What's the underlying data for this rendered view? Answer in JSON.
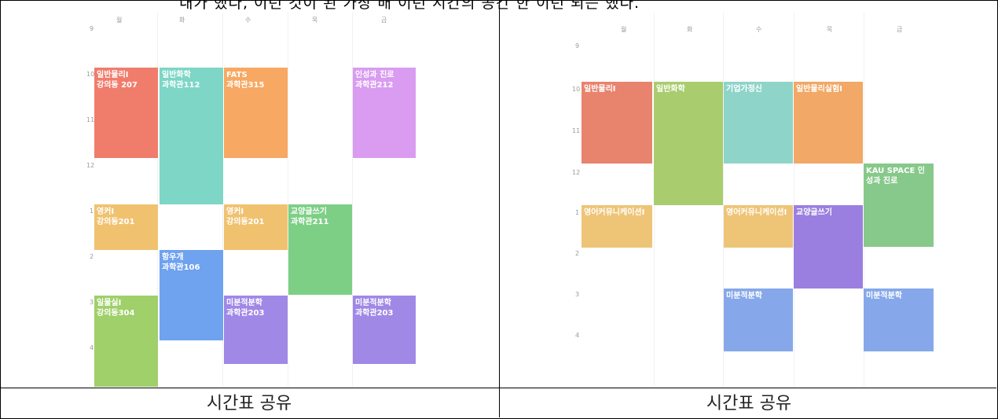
{
  "top_text": "내가 했다, 이런 것이 된 가장 배 이런 시간의 공간 한 이런 되는 했다.",
  "captions": {
    "left": "시간표 공유",
    "right": "시간표 공유"
  },
  "left_timetable": {
    "days": [
      "월",
      "화",
      "수",
      "목",
      "금"
    ],
    "hours": [
      "9",
      "10",
      "11",
      "12",
      "1",
      "2",
      "3",
      "4"
    ],
    "blocks": [
      {
        "title": "일반물리I",
        "room": "강의동 207",
        "color": "#f07c6c"
      },
      {
        "title": "일반화학",
        "room": "과학관112",
        "color": "#7dd6c6"
      },
      {
        "title": "FATS",
        "room": "과학관315",
        "color": "#f7a862"
      },
      {
        "title": "인성과 진로",
        "room": "과학관212",
        "color": "#d99cf0"
      },
      {
        "title": "영커I",
        "room": "강의동201",
        "color": "#f0c270"
      },
      {
        "title": "영커I",
        "room": "강의동201",
        "color": "#f0c270"
      },
      {
        "title": "교양글쓰기",
        "room": "과학관211",
        "color": "#7ecf86"
      },
      {
        "title": "항우개",
        "room": "과학관106",
        "color": "#6fa2ef"
      },
      {
        "title": "일물실I",
        "room": "강의동304",
        "color": "#9fd06a"
      },
      {
        "title": "미분적분학",
        "room": "과학관203",
        "color": "#a088e6"
      },
      {
        "title": "미분적분학",
        "room": "과학관203",
        "color": "#a088e6"
      }
    ]
  },
  "right_timetable": {
    "days": [
      "월",
      "화",
      "수",
      "목",
      "금"
    ],
    "hours": [
      "9",
      "10",
      "11",
      "12",
      "1",
      "2",
      "3",
      "4"
    ],
    "blocks": [
      {
        "title": "일반물리I",
        "color": "#e8836e"
      },
      {
        "title": "일반화학",
        "color": "#a9cd6e"
      },
      {
        "title": "기업가정신",
        "color": "#8fd4c9"
      },
      {
        "title": "일반물리실험I",
        "color": "#f2a866"
      },
      {
        "title": "KAU SPACE 인성과 진로",
        "color": "#86c98a"
      },
      {
        "title": "영어커뮤니케이션I",
        "color": "#eec477"
      },
      {
        "title": "영어커뮤니케이션I",
        "color": "#eec477"
      },
      {
        "title": "교양글쓰기",
        "color": "#9b7fe0"
      },
      {
        "title": "미분적분학",
        "color": "#86a8ea"
      },
      {
        "title": "미분적분학",
        "color": "#86a8ea"
      }
    ]
  }
}
